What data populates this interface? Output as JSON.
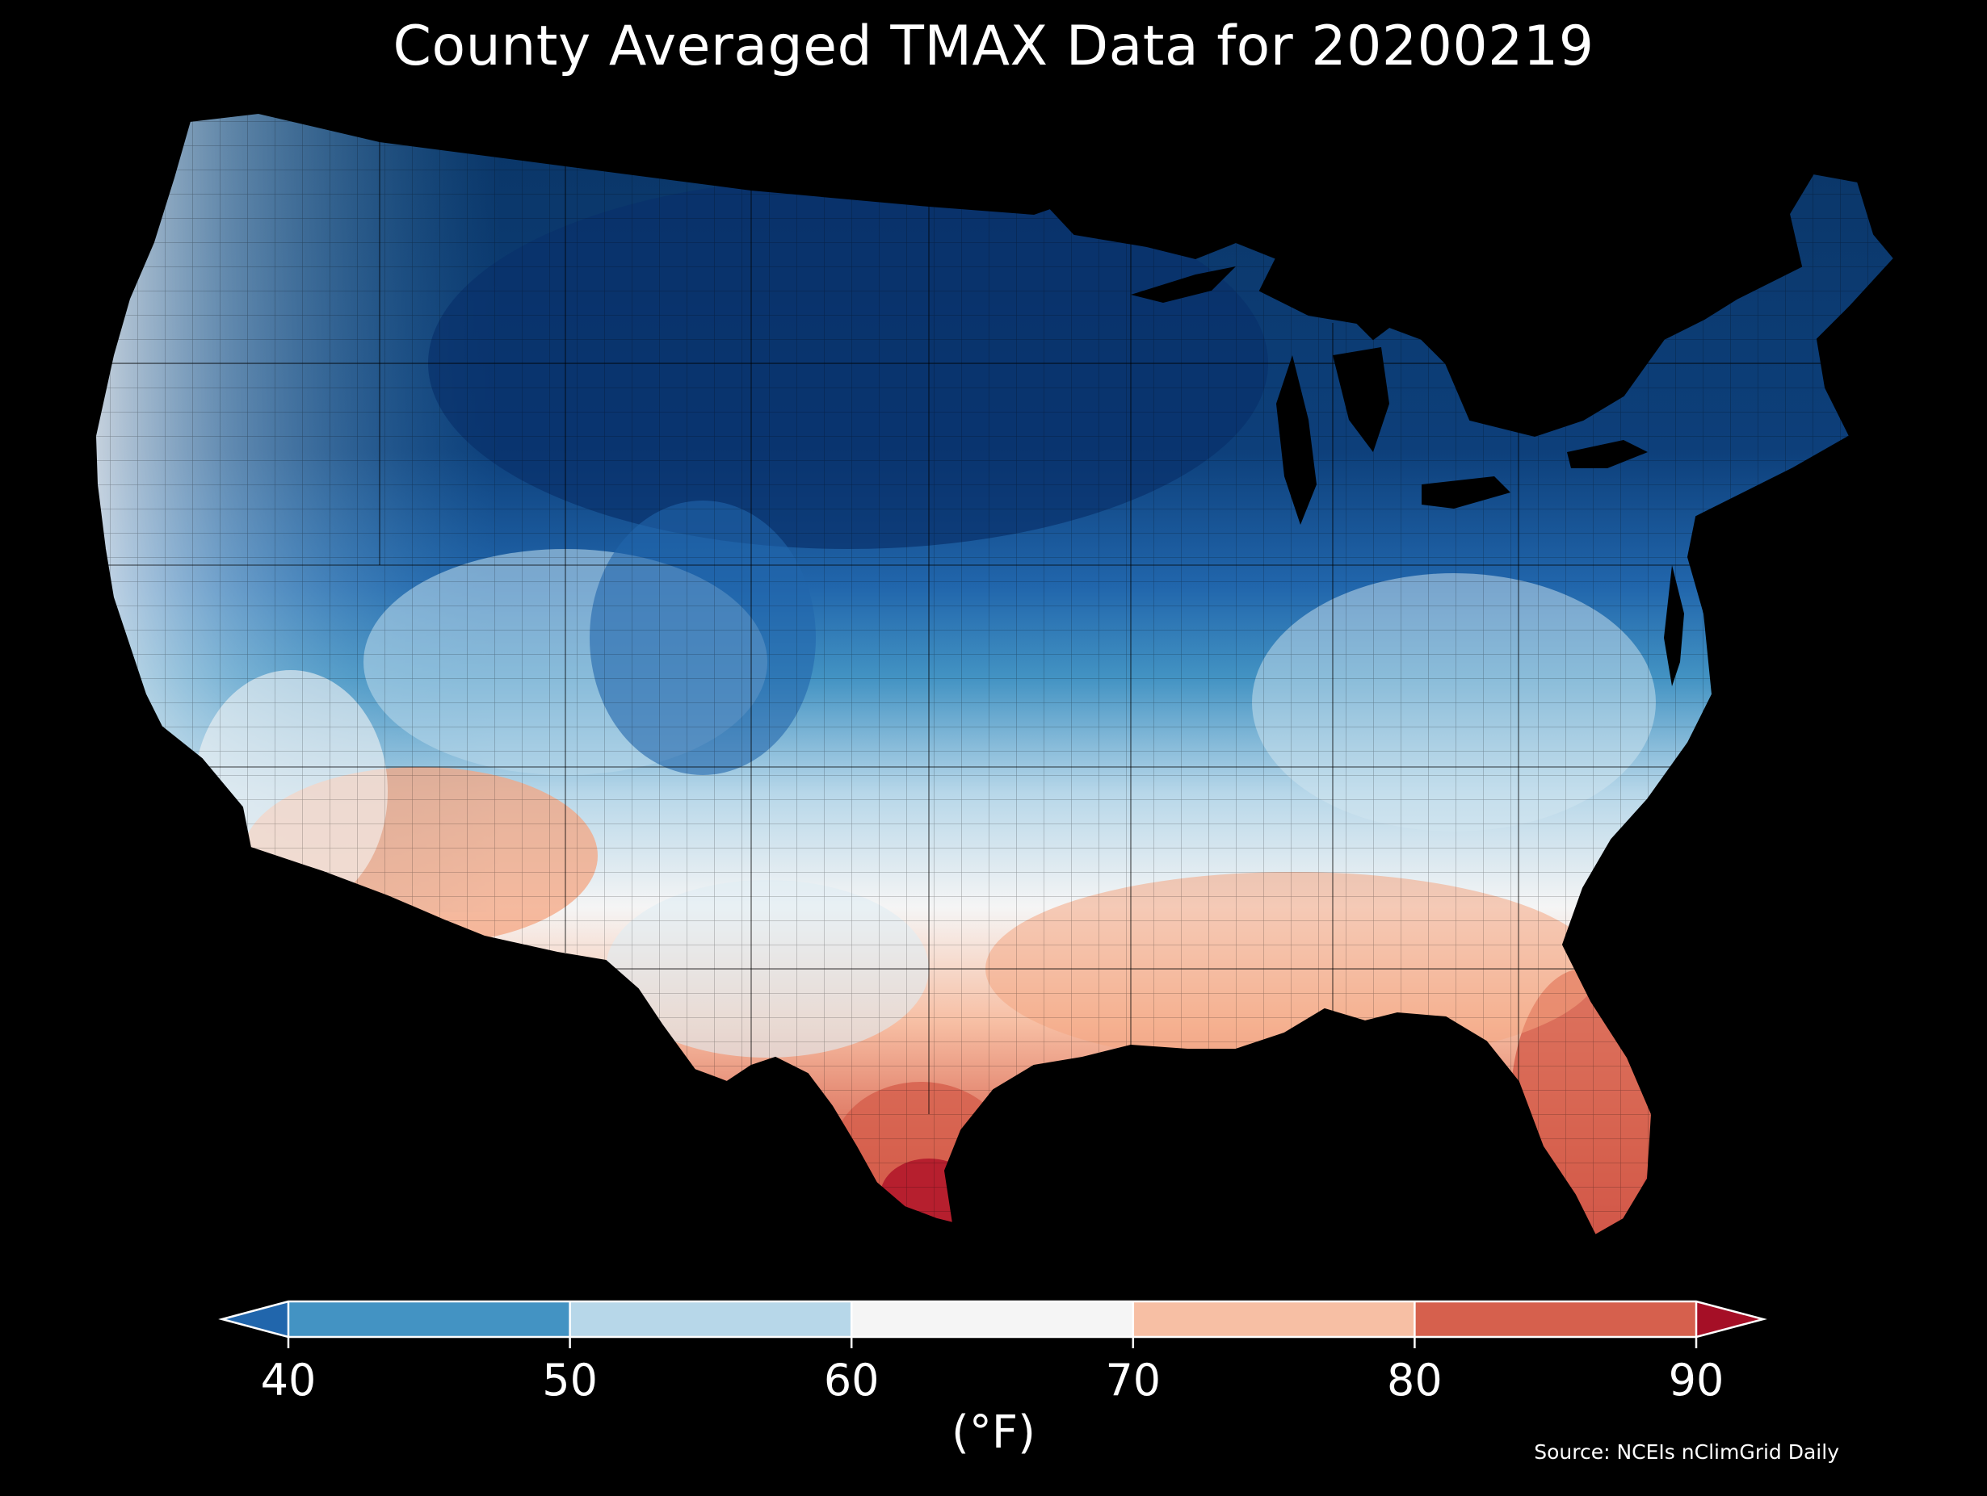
{
  "title": "County Averaged TMAX Data for 20200219",
  "source": "Source: NCEIs nClimGrid Daily",
  "colorbar": {
    "label": "(°F)",
    "ticks": [
      "40",
      "50",
      "60",
      "70",
      "80",
      "90"
    ],
    "bins": [
      {
        "range": "<40",
        "color": "#2166ac"
      },
      {
        "range": "40-50",
        "color": "#4393c3"
      },
      {
        "range": "50-60",
        "color": "#b7d7e9"
      },
      {
        "range": "60-70",
        "color": "#f5f5f5"
      },
      {
        "range": "70-80",
        "color": "#f7bfa4"
      },
      {
        "range": "80-90",
        "color": "#d6604d"
      },
      {
        "range": ">90",
        "color": "#a50f26"
      }
    ]
  },
  "colors": {
    "background": "#000000",
    "very_cold": "#0a3566",
    "cold": "#2166ac",
    "cool": "#4393c3",
    "mild": "#b7d7e9",
    "neutral": "#f5f5f5",
    "warm": "#f7bfa4",
    "hot": "#d6604d",
    "very_hot": "#b2182b"
  }
}
